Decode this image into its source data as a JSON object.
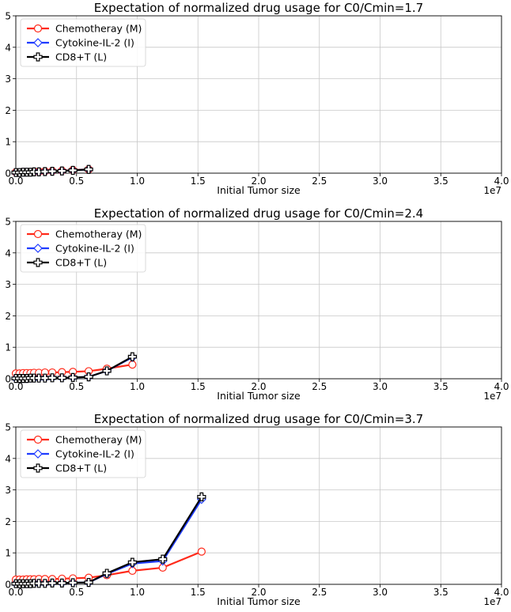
{
  "chart_data": [
    {
      "type": "line",
      "title": "Expectation of normalized drug usage for C0/Cmin=1.7",
      "xlabel": "Initial Tumor size",
      "x_offset_label": "1e7",
      "xlim": [
        0,
        4.0
      ],
      "ylim": [
        0,
        5
      ],
      "x_ticks": [
        "0.0",
        "0.5",
        "1.0",
        "1.5",
        "2.0",
        "2.5",
        "3.0",
        "3.5",
        "4.0"
      ],
      "y_ticks": [
        "0",
        "1",
        "2",
        "3",
        "4",
        "5"
      ],
      "grid": true,
      "legend_position": "top-left",
      "series": [
        {
          "name": "Chemotheray (M)",
          "color": "#ff2a1a",
          "marker": "circle",
          "x": [
            0.0,
            0.03,
            0.06,
            0.09,
            0.12,
            0.15,
            0.19,
            0.24,
            0.3,
            0.38,
            0.47,
            0.6
          ],
          "y": [
            0.03,
            0.03,
            0.04,
            0.04,
            0.04,
            0.05,
            0.05,
            0.06,
            0.07,
            0.08,
            0.1,
            0.12
          ]
        },
        {
          "name": "Cytokine-IL-2 (I)",
          "color": "#1f3bff",
          "marker": "diamond",
          "x": [
            0.0,
            0.03,
            0.06,
            0.09,
            0.12,
            0.15,
            0.19,
            0.24,
            0.3,
            0.38,
            0.47,
            0.6
          ],
          "y": [
            0.02,
            0.02,
            0.03,
            0.03,
            0.03,
            0.04,
            0.04,
            0.05,
            0.06,
            0.07,
            0.09,
            0.12
          ]
        },
        {
          "name": "CD8+T (L)",
          "color": "#000000",
          "marker": "plus",
          "x": [
            0.0,
            0.03,
            0.06,
            0.09,
            0.12,
            0.15,
            0.19,
            0.24,
            0.3,
            0.38,
            0.47,
            0.6
          ],
          "y": [
            0.02,
            0.02,
            0.03,
            0.03,
            0.03,
            0.04,
            0.04,
            0.05,
            0.06,
            0.07,
            0.09,
            0.12
          ]
        }
      ]
    },
    {
      "type": "line",
      "title": "Expectation of normalized drug usage for C0/Cmin=2.4",
      "xlabel": "Initial Tumor size",
      "x_offset_label": "1e7",
      "xlim": [
        0,
        4.0
      ],
      "ylim": [
        0,
        5
      ],
      "x_ticks": [
        "0.0",
        "0.5",
        "1.0",
        "1.5",
        "2.0",
        "2.5",
        "3.0",
        "3.5",
        "4.0"
      ],
      "y_ticks": [
        "0",
        "1",
        "2",
        "3",
        "4",
        "5"
      ],
      "grid": true,
      "legend_position": "top-left",
      "series": [
        {
          "name": "Chemotheray (M)",
          "color": "#ff2a1a",
          "marker": "circle",
          "x": [
            0.0,
            0.03,
            0.06,
            0.09,
            0.12,
            0.15,
            0.19,
            0.24,
            0.3,
            0.38,
            0.47,
            0.6,
            0.75,
            0.96
          ],
          "y": [
            0.17,
            0.17,
            0.18,
            0.18,
            0.18,
            0.19,
            0.19,
            0.2,
            0.2,
            0.21,
            0.22,
            0.24,
            0.32,
            0.45
          ]
        },
        {
          "name": "Cytokine-IL-2 (I)",
          "color": "#1f3bff",
          "marker": "diamond",
          "x": [
            0.0,
            0.03,
            0.06,
            0.09,
            0.12,
            0.15,
            0.19,
            0.24,
            0.3,
            0.38,
            0.47,
            0.6,
            0.75,
            0.96
          ],
          "y": [
            0.01,
            0.01,
            0.01,
            0.01,
            0.02,
            0.02,
            0.02,
            0.02,
            0.03,
            0.03,
            0.04,
            0.06,
            0.25,
            0.68
          ]
        },
        {
          "name": "CD8+T (L)",
          "color": "#000000",
          "marker": "plus",
          "x": [
            0.0,
            0.03,
            0.06,
            0.09,
            0.12,
            0.15,
            0.19,
            0.24,
            0.3,
            0.38,
            0.47,
            0.6,
            0.75,
            0.96
          ],
          "y": [
            0.01,
            0.01,
            0.01,
            0.01,
            0.02,
            0.02,
            0.02,
            0.02,
            0.03,
            0.03,
            0.04,
            0.06,
            0.25,
            0.7
          ]
        }
      ]
    },
    {
      "type": "line",
      "title": "Expectation of normalized drug usage for C0/Cmin=3.7",
      "xlabel": "Initial Tumor size",
      "x_offset_label": "1e7",
      "xlim": [
        0,
        4.0
      ],
      "ylim": [
        0,
        5
      ],
      "x_ticks": [
        "0.0",
        "0.5",
        "1.0",
        "1.5",
        "2.0",
        "2.5",
        "3.0",
        "3.5",
        "4.0"
      ],
      "y_ticks": [
        "0",
        "1",
        "2",
        "3",
        "4",
        "5"
      ],
      "grid": true,
      "legend_position": "top-left",
      "series": [
        {
          "name": "Chemotheray (M)",
          "color": "#ff2a1a",
          "marker": "circle",
          "x": [
            0.0,
            0.03,
            0.06,
            0.09,
            0.12,
            0.15,
            0.19,
            0.24,
            0.3,
            0.38,
            0.47,
            0.6,
            0.75,
            0.96,
            1.21,
            1.53
          ],
          "y": [
            0.15,
            0.15,
            0.15,
            0.16,
            0.16,
            0.16,
            0.17,
            0.17,
            0.17,
            0.18,
            0.19,
            0.21,
            0.29,
            0.43,
            0.53,
            1.04
          ]
        },
        {
          "name": "Cytokine-IL-2 (I)",
          "color": "#1f3bff",
          "marker": "diamond",
          "x": [
            0.0,
            0.03,
            0.06,
            0.09,
            0.12,
            0.15,
            0.19,
            0.24,
            0.3,
            0.38,
            0.47,
            0.6,
            0.75,
            0.96,
            1.21,
            1.53
          ],
          "y": [
            0.02,
            0.02,
            0.02,
            0.02,
            0.02,
            0.03,
            0.03,
            0.03,
            0.04,
            0.04,
            0.05,
            0.06,
            0.33,
            0.66,
            0.74,
            2.7
          ]
        },
        {
          "name": "CD8+T (L)",
          "color": "#000000",
          "marker": "plus",
          "x": [
            0.0,
            0.03,
            0.06,
            0.09,
            0.12,
            0.15,
            0.19,
            0.24,
            0.3,
            0.38,
            0.47,
            0.6,
            0.75,
            0.96,
            1.21,
            1.53
          ],
          "y": [
            0.02,
            0.02,
            0.02,
            0.02,
            0.02,
            0.03,
            0.03,
            0.03,
            0.04,
            0.04,
            0.05,
            0.06,
            0.35,
            0.7,
            0.8,
            2.78
          ]
        }
      ]
    }
  ]
}
